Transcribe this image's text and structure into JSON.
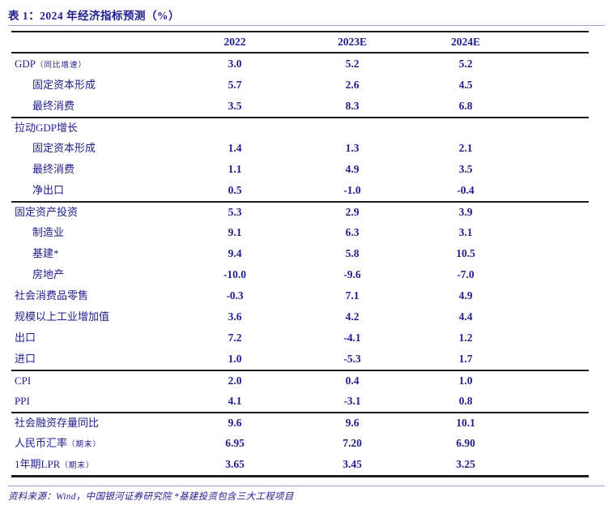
{
  "title": "表 1：2024 年经济指标预测（%）",
  "colors": {
    "text_navy": "#201d8c",
    "rule_dark": "#1c1c1c",
    "rule_light": "#9e9ed4",
    "background": "#ffffff"
  },
  "footnote": "资料来源：Wind，中国银河证券研究院 *基建投资包含三大工程项目",
  "chart_data": {
    "type": "table",
    "title": "表 1：2024 年经济指标预测（%）",
    "col_headers": [
      "2022",
      "2023E",
      "2024E"
    ],
    "rows": [
      {
        "label": "GDP",
        "suffix": "（同比增速）",
        "indent": false,
        "sep": false,
        "values": [
          "3.0",
          "5.2",
          "5.2"
        ]
      },
      {
        "label": "固定资本形成",
        "suffix": "",
        "indent": true,
        "sep": false,
        "values": [
          "5.7",
          "2.6",
          "4.5"
        ]
      },
      {
        "label": "最终消费",
        "suffix": "",
        "indent": true,
        "sep": false,
        "values": [
          "3.5",
          "8.3",
          "6.8"
        ]
      },
      {
        "label": "拉动GDP增长",
        "suffix": "",
        "indent": false,
        "sep": true,
        "values": [
          "",
          "",
          ""
        ]
      },
      {
        "label": "固定资本形成",
        "suffix": "",
        "indent": true,
        "sep": false,
        "values": [
          "1.4",
          "1.3",
          "2.1"
        ]
      },
      {
        "label": "最终消费",
        "suffix": "",
        "indent": true,
        "sep": false,
        "values": [
          "1.1",
          "4.9",
          "3.5"
        ]
      },
      {
        "label": "净出口",
        "suffix": "",
        "indent": true,
        "sep": false,
        "values": [
          "0.5",
          "-1.0",
          "-0.4"
        ]
      },
      {
        "label": "固定资产投资",
        "suffix": "",
        "indent": false,
        "sep": true,
        "values": [
          "5.3",
          "2.9",
          "3.9"
        ]
      },
      {
        "label": "制造业",
        "suffix": "",
        "indent": true,
        "sep": false,
        "values": [
          "9.1",
          "6.3",
          "3.1"
        ]
      },
      {
        "label": "基建*",
        "suffix": "",
        "indent": true,
        "sep": false,
        "values": [
          "9.4",
          "5.8",
          "10.5"
        ]
      },
      {
        "label": "房地产",
        "suffix": "",
        "indent": true,
        "sep": false,
        "values": [
          "-10.0",
          "-9.6",
          "-7.0"
        ]
      },
      {
        "label": "社会消费品零售",
        "suffix": "",
        "indent": false,
        "sep": false,
        "values": [
          "-0.3",
          "7.1",
          "4.9"
        ]
      },
      {
        "label": "规模以上工业增加值",
        "suffix": "",
        "indent": false,
        "sep": false,
        "values": [
          "3.6",
          "4.2",
          "4.4"
        ]
      },
      {
        "label": "出口",
        "suffix": "",
        "indent": false,
        "sep": false,
        "values": [
          "7.2",
          "-4.1",
          "1.2"
        ]
      },
      {
        "label": "进口",
        "suffix": "",
        "indent": false,
        "sep": false,
        "values": [
          "1.0",
          "-5.3",
          "1.7"
        ]
      },
      {
        "label": "CPI",
        "suffix": "",
        "indent": false,
        "sep": true,
        "values": [
          "2.0",
          "0.4",
          "1.0"
        ]
      },
      {
        "label": "PPI",
        "suffix": "",
        "indent": false,
        "sep": false,
        "values": [
          "4.1",
          "-3.1",
          "0.8"
        ]
      },
      {
        "label": "社会融资存量同比",
        "suffix": "",
        "indent": false,
        "sep": true,
        "values": [
          "9.6",
          "9.6",
          "10.1"
        ]
      },
      {
        "label": "人民币汇率",
        "suffix": "（期末）",
        "indent": false,
        "sep": false,
        "values": [
          "6.95",
          "7.20",
          "6.90"
        ]
      },
      {
        "label": "1年期LPR",
        "suffix": "（期末）",
        "indent": false,
        "sep": false,
        "values": [
          "3.65",
          "3.45",
          "3.25"
        ]
      }
    ]
  }
}
